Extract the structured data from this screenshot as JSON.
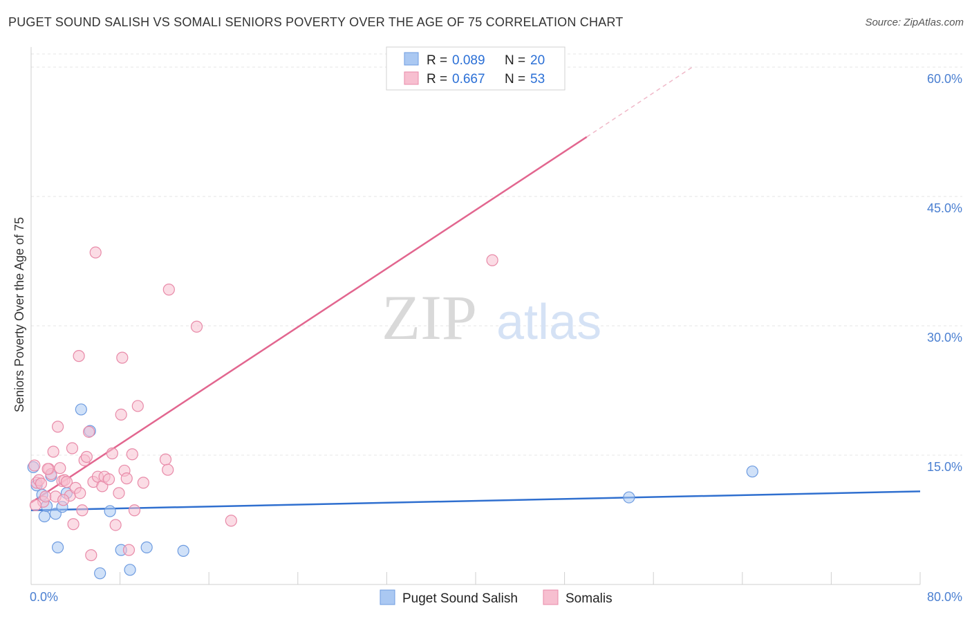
{
  "title": "PUGET SOUND SALISH VS SOMALI SENIORS POVERTY OVER THE AGE OF 75 CORRELATION CHART",
  "source": "Source: ZipAtlas.com",
  "watermark": {
    "zip": "ZIP",
    "atlas": "atlas"
  },
  "colors": {
    "blue_fill": "#aac8f2",
    "blue_stroke": "#6d9be0",
    "blue_line": "#2f6fcf",
    "pink_fill": "#f7bfd0",
    "pink_stroke": "#e88aa8",
    "pink_line": "#e2668f",
    "tick": "#4a7fd1",
    "grid": "#e4e4e4"
  },
  "legend": {
    "r_label": "R =",
    "n_label": "N =",
    "rows": [
      {
        "series": "Puget Sound Salish",
        "r": "0.089",
        "n": "20"
      },
      {
        "series": "Somalis",
        "r": "0.667",
        "n": "53"
      }
    ]
  },
  "chart_data": {
    "type": "scatter",
    "title": "PUGET SOUND SALISH VS SOMALI SENIORS POVERTY OVER THE AGE OF 75 CORRELATION CHART",
    "xlabel": "",
    "ylabel": "Seniors Poverty Over the Age of 75",
    "xlim": [
      0,
      80
    ],
    "ylim": [
      0,
      60
    ],
    "x_tick_labels": [
      "0.0%",
      "80.0%"
    ],
    "y_ticks": [
      {
        "value": 15,
        "label": "15.0%"
      },
      {
        "value": 30,
        "label": "30.0%"
      },
      {
        "value": 45,
        "label": "45.0%"
      },
      {
        "value": 60,
        "label": "60.0%"
      }
    ],
    "series": [
      {
        "name": "Puget Sound Salish",
        "color": "blue",
        "points": [
          [
            0.2,
            13.6
          ],
          [
            1.0,
            10.4
          ],
          [
            1.2,
            7.9
          ],
          [
            1.4,
            9.1
          ],
          [
            1.8,
            12.6
          ],
          [
            2.2,
            8.2
          ],
          [
            2.4,
            4.3
          ],
          [
            2.8,
            9.0
          ],
          [
            3.2,
            10.6
          ],
          [
            4.5,
            20.3
          ],
          [
            5.3,
            17.8
          ],
          [
            6.2,
            1.3
          ],
          [
            7.1,
            8.5
          ],
          [
            8.1,
            4.0
          ],
          [
            8.9,
            1.7
          ],
          [
            10.4,
            4.3
          ],
          [
            13.7,
            3.9
          ],
          [
            53.8,
            10.1
          ],
          [
            64.9,
            13.1
          ],
          [
            0.5,
            11.5
          ]
        ],
        "trend": {
          "x": [
            0,
            80
          ],
          "y": [
            8.6,
            10.8
          ]
        }
      },
      {
        "name": "Somalis",
        "color": "pink",
        "points": [
          [
            0.3,
            13.8
          ],
          [
            0.5,
            11.8
          ],
          [
            0.7,
            12.1
          ],
          [
            0.9,
            11.7
          ],
          [
            1.1,
            9.6
          ],
          [
            1.3,
            10.2
          ],
          [
            1.6,
            13.4
          ],
          [
            1.8,
            12.8
          ],
          [
            2.0,
            15.4
          ],
          [
            2.2,
            10.2
          ],
          [
            2.4,
            18.3
          ],
          [
            2.6,
            13.5
          ],
          [
            2.8,
            12.0
          ],
          [
            3.0,
            12.1
          ],
          [
            3.2,
            11.9
          ],
          [
            3.5,
            10.3
          ],
          [
            3.7,
            15.8
          ],
          [
            3.8,
            7.0
          ],
          [
            4.0,
            11.2
          ],
          [
            4.3,
            26.5
          ],
          [
            4.4,
            10.6
          ],
          [
            4.6,
            8.6
          ],
          [
            4.8,
            14.4
          ],
          [
            5.0,
            14.8
          ],
          [
            5.2,
            17.7
          ],
          [
            5.4,
            3.4
          ],
          [
            5.6,
            11.9
          ],
          [
            5.8,
            38.5
          ],
          [
            6.0,
            12.5
          ],
          [
            6.4,
            11.4
          ],
          [
            6.6,
            12.5
          ],
          [
            7.0,
            12.2
          ],
          [
            7.3,
            15.2
          ],
          [
            7.6,
            6.9
          ],
          [
            7.9,
            10.6
          ],
          [
            8.1,
            19.7
          ],
          [
            8.2,
            26.3
          ],
          [
            8.4,
            13.2
          ],
          [
            8.6,
            12.3
          ],
          [
            8.8,
            4.0
          ],
          [
            9.1,
            15.1
          ],
          [
            9.3,
            8.6
          ],
          [
            9.6,
            20.7
          ],
          [
            10.1,
            11.8
          ],
          [
            12.1,
            14.5
          ],
          [
            12.3,
            13.3
          ],
          [
            12.4,
            34.2
          ],
          [
            14.9,
            29.9
          ],
          [
            18.0,
            7.4
          ],
          [
            41.5,
            37.6
          ],
          [
            0.4,
            9.2
          ],
          [
            1.5,
            13.4
          ],
          [
            2.9,
            9.8
          ]
        ],
        "trend": {
          "x": [
            0,
            50
          ],
          "y": [
            9.5,
            51.9
          ]
        },
        "trend_dashed": {
          "x": [
            50,
            59.5
          ],
          "y": [
            51.9,
            60.0
          ]
        }
      }
    ]
  }
}
